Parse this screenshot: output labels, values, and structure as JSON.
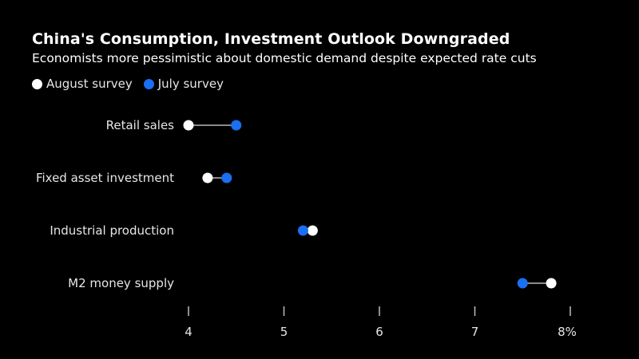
{
  "chart_data": {
    "type": "dot-range",
    "title": "China's Consumption, Investment Outlook Downgraded",
    "subtitle": "Economists more pessimistic about domestic demand despite expected rate cuts",
    "categories": [
      "Retail sales",
      "Fixed asset investment",
      "Industrial production",
      "M2 money supply"
    ],
    "series": [
      {
        "name": "August survey",
        "color": "#ffffff",
        "values": [
          4.0,
          4.2,
          5.3,
          7.8
        ]
      },
      {
        "name": "July survey",
        "color": "#1a6ff2",
        "values": [
          4.5,
          4.4,
          5.2,
          7.5
        ]
      }
    ],
    "connector_color": "#8a8a8a",
    "x_ticks": [
      4,
      5,
      6,
      7,
      8
    ],
    "x_tick_labels": [
      "4",
      "5",
      "6",
      "7",
      "8%"
    ],
    "xlim": [
      4,
      8
    ],
    "grid": false,
    "legend_position": "top-left"
  }
}
